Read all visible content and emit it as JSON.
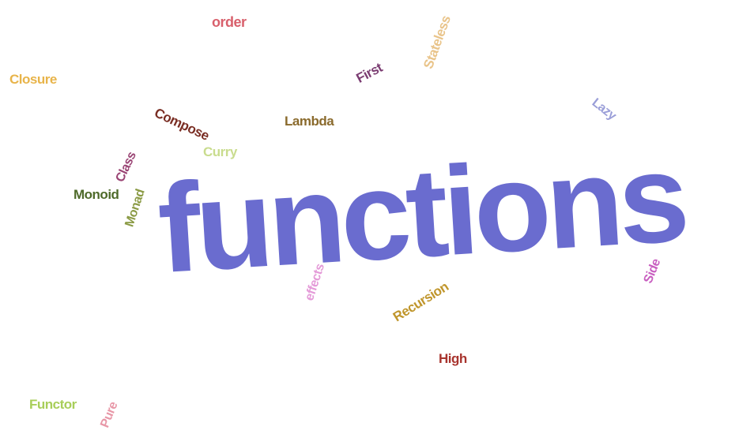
{
  "words": [
    {
      "id": "functions",
      "text": "functions",
      "color": "#6a6ccf"
    },
    {
      "id": "order",
      "text": "order",
      "color": "#d8606c"
    },
    {
      "id": "stateless",
      "text": "Stateless",
      "color": "#e9c48a"
    },
    {
      "id": "closure",
      "text": "Closure",
      "color": "#e8b44a"
    },
    {
      "id": "first",
      "text": "First",
      "color": "#7b3d72"
    },
    {
      "id": "lazy",
      "text": "Lazy",
      "color": "#9a9ed8"
    },
    {
      "id": "compose",
      "text": "Compose",
      "color": "#7a2e24"
    },
    {
      "id": "lambda",
      "text": "Lambda",
      "color": "#8a6a2c"
    },
    {
      "id": "curry",
      "text": "Curry",
      "color": "#c9dc8e"
    },
    {
      "id": "class",
      "text": "Class",
      "color": "#9a4474"
    },
    {
      "id": "monoid",
      "text": "Monoid",
      "color": "#4e6a2a"
    },
    {
      "id": "monad",
      "text": "Monad",
      "color": "#8a9a44"
    },
    {
      "id": "side",
      "text": "Side",
      "color": "#c85ec0"
    },
    {
      "id": "effects",
      "text": "effects",
      "color": "#e49ad8"
    },
    {
      "id": "recursion",
      "text": "Recursion",
      "color": "#c0962c"
    },
    {
      "id": "high",
      "text": "High",
      "color": "#a8342e"
    },
    {
      "id": "functor",
      "text": "Functor",
      "color": "#a8ce5a"
    },
    {
      "id": "pure",
      "text": "Pure",
      "color": "#e898a8"
    }
  ]
}
